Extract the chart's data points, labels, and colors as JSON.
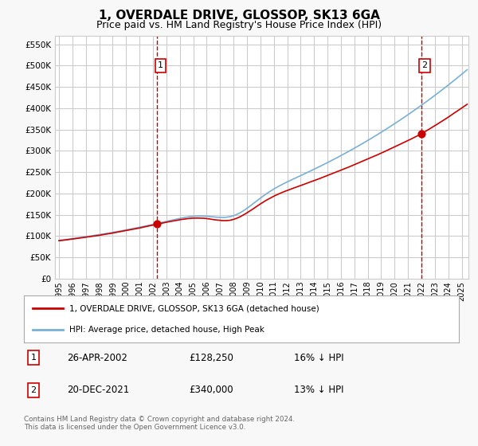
{
  "title": "1, OVERDALE DRIVE, GLOSSOP, SK13 6GA",
  "subtitle": "Price paid vs. HM Land Registry's House Price Index (HPI)",
  "title_fontsize": 11,
  "subtitle_fontsize": 9,
  "ytick_values": [
    0,
    50000,
    100000,
    150000,
    200000,
    250000,
    300000,
    350000,
    400000,
    450000,
    500000,
    550000
  ],
  "ylim": [
    0,
    570000
  ],
  "xlim_start": 1994.7,
  "xlim_end": 2025.5,
  "background_color": "#f8f8f8",
  "plot_bg_color": "#ffffff",
  "grid_color": "#cccccc",
  "red_line_color": "#cc0000",
  "blue_line_color": "#7ab0d4",
  "dashed_vline_color": "#cc0000",
  "marker1_date": 2002.32,
  "marker1_value": 128250,
  "marker2_date": 2021.97,
  "marker2_value": 340000,
  "legend_label_red": "1, OVERDALE DRIVE, GLOSSOP, SK13 6GA (detached house)",
  "legend_label_blue": "HPI: Average price, detached house, High Peak",
  "table_entries": [
    {
      "num": 1,
      "date": "26-APR-2002",
      "price": "£128,250",
      "pct": "16% ↓ HPI"
    },
    {
      "num": 2,
      "date": "20-DEC-2021",
      "price": "£340,000",
      "pct": "13% ↓ HPI"
    }
  ],
  "footnote": "Contains HM Land Registry data © Crown copyright and database right 2024.\nThis data is licensed under the Open Government Licence v3.0.",
  "xtick_years": [
    1995,
    1996,
    1997,
    1998,
    1999,
    2000,
    2001,
    2002,
    2003,
    2004,
    2005,
    2006,
    2007,
    2008,
    2009,
    2010,
    2011,
    2012,
    2013,
    2014,
    2015,
    2016,
    2017,
    2018,
    2019,
    2020,
    2021,
    2022,
    2023,
    2024,
    2025
  ]
}
